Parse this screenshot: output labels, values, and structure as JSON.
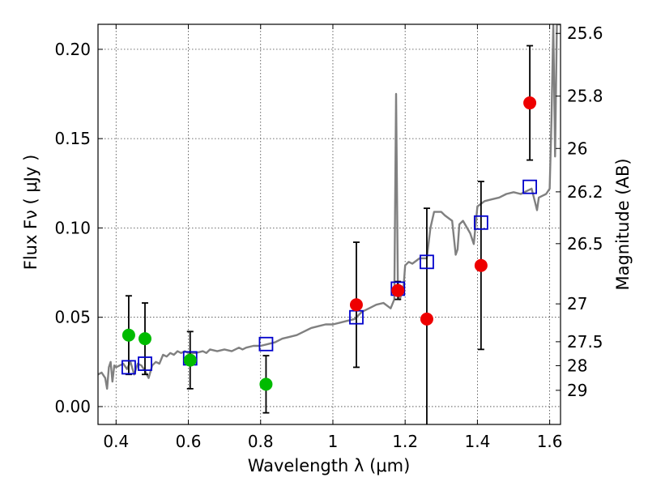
{
  "chart_data": {
    "type": "scatter",
    "xlabel": "Wavelength  λ (μm)",
    "ylabel": "Flux  Fν  ( μJy )",
    "ylabel_right": "Magnitude (AB)",
    "xlim": [
      0.35,
      1.63
    ],
    "ylim": [
      -0.01,
      0.214
    ],
    "x_ticks": [
      0.4,
      0.6,
      0.8,
      1.0,
      1.2,
      1.4,
      1.6
    ],
    "x_tick_labels": [
      "0.4",
      "0.6",
      "0.8",
      "1",
      "1.2",
      "1.4",
      "1.6"
    ],
    "y_ticks": [
      0.0,
      0.05,
      0.1,
      0.15,
      0.2
    ],
    "y_tick_labels": [
      "0.00",
      "0.05",
      "0.10",
      "0.15",
      "0.20"
    ],
    "right_ticks": [
      {
        "label": "25.6",
        "flux": 0.2089
      },
      {
        "label": "25.8",
        "flux": 0.1738
      },
      {
        "label": "26",
        "flux": 0.1445
      },
      {
        "label": "26.2",
        "flux": 0.1202
      },
      {
        "label": "26.5",
        "flux": 0.0912
      },
      {
        "label": "27",
        "flux": 0.0575
      },
      {
        "label": "27.5",
        "flux": 0.0363
      },
      {
        "label": "28",
        "flux": 0.0229
      },
      {
        "label": "29",
        "flux": 0.0091
      }
    ],
    "colors": {
      "model_line": "#808080",
      "green_points": "#00bb00",
      "red_points": "#ee0000",
      "model_squares": "#0000cc",
      "errorbars": "#000000"
    },
    "series": [
      {
        "name": "model spectrum",
        "type": "line",
        "x": [
          0.35,
          0.36,
          0.37,
          0.375,
          0.38,
          0.385,
          0.39,
          0.395,
          0.4,
          0.41,
          0.42,
          0.43,
          0.44,
          0.45,
          0.46,
          0.47,
          0.48,
          0.49,
          0.5,
          0.51,
          0.52,
          0.53,
          0.54,
          0.55,
          0.56,
          0.57,
          0.58,
          0.59,
          0.6,
          0.62,
          0.64,
          0.65,
          0.66,
          0.68,
          0.7,
          0.72,
          0.74,
          0.75,
          0.76,
          0.78,
          0.8,
          0.82,
          0.84,
          0.86,
          0.88,
          0.9,
          0.92,
          0.94,
          0.96,
          0.98,
          1.0,
          1.02,
          1.04,
          1.06,
          1.08,
          1.1,
          1.12,
          1.14,
          1.16,
          1.17,
          1.175,
          1.18,
          1.185,
          1.19,
          1.195,
          1.2,
          1.21,
          1.22,
          1.24,
          1.26,
          1.27,
          1.28,
          1.29,
          1.3,
          1.31,
          1.33,
          1.34,
          1.345,
          1.35,
          1.36,
          1.38,
          1.39,
          1.4,
          1.42,
          1.44,
          1.46,
          1.48,
          1.5,
          1.52,
          1.54,
          1.55,
          1.56,
          1.565,
          1.57,
          1.58,
          1.59,
          1.6,
          1.605,
          1.61,
          1.615,
          1.62,
          1.63
        ],
        "y": [
          0.018,
          0.019,
          0.016,
          0.01,
          0.022,
          0.025,
          0.014,
          0.023,
          0.022,
          0.023,
          0.024,
          0.021,
          0.025,
          0.018,
          0.024,
          0.023,
          0.02,
          0.016,
          0.023,
          0.025,
          0.024,
          0.029,
          0.028,
          0.03,
          0.029,
          0.031,
          0.03,
          0.031,
          0.03,
          0.03,
          0.031,
          0.03,
          0.032,
          0.031,
          0.032,
          0.031,
          0.033,
          0.032,
          0.033,
          0.034,
          0.034,
          0.035,
          0.036,
          0.038,
          0.039,
          0.04,
          0.042,
          0.044,
          0.045,
          0.046,
          0.046,
          0.047,
          0.048,
          0.049,
          0.053,
          0.055,
          0.057,
          0.058,
          0.055,
          0.06,
          0.175,
          0.062,
          0.06,
          0.063,
          0.065,
          0.079,
          0.081,
          0.08,
          0.083,
          0.083,
          0.1,
          0.109,
          0.109,
          0.109,
          0.107,
          0.104,
          0.085,
          0.088,
          0.102,
          0.104,
          0.097,
          0.091,
          0.112,
          0.115,
          0.116,
          0.117,
          0.119,
          0.12,
          0.119,
          0.121,
          0.122,
          0.114,
          0.11,
          0.117,
          0.118,
          0.119,
          0.122,
          0.16,
          0.214,
          0.14,
          0.214,
          0.214
        ]
      },
      {
        "name": "green observations",
        "type": "scatter",
        "points": [
          {
            "x": 0.435,
            "y": 0.04,
            "err": 0.022
          },
          {
            "x": 0.48,
            "y": 0.038,
            "err": 0.02
          },
          {
            "x": 0.605,
            "y": 0.026,
            "err": 0.016
          },
          {
            "x": 0.815,
            "y": 0.0125,
            "err": 0.016
          }
        ]
      },
      {
        "name": "red observations",
        "type": "scatter",
        "points": [
          {
            "x": 1.065,
            "y": 0.057,
            "err": 0.035
          },
          {
            "x": 1.18,
            "y": 0.065,
            "err": 0.005
          },
          {
            "x": 1.26,
            "y": 0.049,
            "err": 0.062
          },
          {
            "x": 1.41,
            "y": 0.079,
            "err": 0.047
          },
          {
            "x": 1.545,
            "y": 0.17,
            "err": 0.032
          }
        ]
      },
      {
        "name": "model photometry",
        "type": "scatter",
        "points": [
          {
            "x": 0.435,
            "y": 0.022
          },
          {
            "x": 0.48,
            "y": 0.024
          },
          {
            "x": 0.605,
            "y": 0.027
          },
          {
            "x": 0.815,
            "y": 0.035
          },
          {
            "x": 1.065,
            "y": 0.05
          },
          {
            "x": 1.18,
            "y": 0.066
          },
          {
            "x": 1.26,
            "y": 0.081
          },
          {
            "x": 1.41,
            "y": 0.103
          },
          {
            "x": 1.545,
            "y": 0.123
          }
        ]
      }
    ]
  }
}
